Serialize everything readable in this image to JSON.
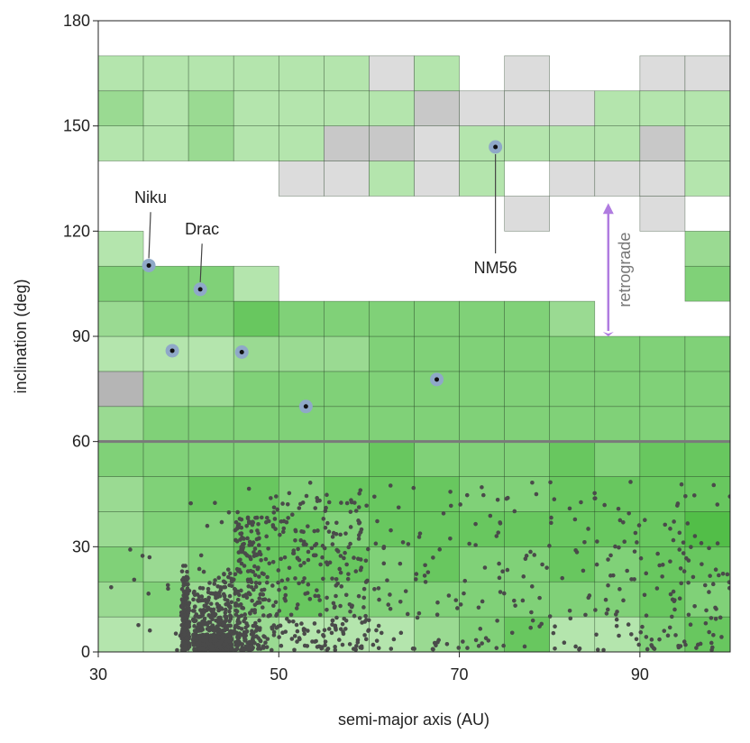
{
  "chart_data": {
    "type": "heatmap",
    "xlabel": "semi-major axis (AU)",
    "ylabel": "inclination (deg)",
    "xlim": [
      30,
      100
    ],
    "ylim": [
      0,
      180
    ],
    "x_ticks": [
      30,
      50,
      70,
      90
    ],
    "y_ticks": [
      0,
      30,
      60,
      90,
      120,
      150,
      180
    ],
    "grid": false,
    "bin_width_au": 5,
    "bin_height_deg": 10,
    "reference_line_deg": 60,
    "colors": {
      "green_1": "#b4e5ad",
      "green_2": "#9ada92",
      "green_3": "#80d178",
      "green_4": "#68c75f",
      "green_5": "#52be48",
      "gray_1": "#dcdcdc",
      "gray_2": "#c8c8c8",
      "gray_3": "#b5b5b5",
      "cell_border": "#1f3a1f",
      "dots": "#4a4a4a",
      "highlight_ring": "#8fa8c8",
      "arrow": "#b07ce0"
    },
    "cells": [
      {
        "a": 30,
        "i": 0,
        "level": "green_1"
      },
      {
        "a": 35,
        "i": 0,
        "level": "green_1"
      },
      {
        "a": 40,
        "i": 0,
        "level": "green_2"
      },
      {
        "a": 45,
        "i": 0,
        "level": "green_2"
      },
      {
        "a": 50,
        "i": 0,
        "level": "green_1"
      },
      {
        "a": 55,
        "i": 0,
        "level": "green_1"
      },
      {
        "a": 60,
        "i": 0,
        "level": "green_1"
      },
      {
        "a": 65,
        "i": 0,
        "level": "green_2"
      },
      {
        "a": 70,
        "i": 0,
        "level": "green_3"
      },
      {
        "a": 75,
        "i": 0,
        "level": "green_4"
      },
      {
        "a": 80,
        "i": 0,
        "level": "green_1"
      },
      {
        "a": 85,
        "i": 0,
        "level": "green_1"
      },
      {
        "a": 90,
        "i": 0,
        "level": "green_3"
      },
      {
        "a": 95,
        "i": 0,
        "level": "green_4"
      },
      {
        "a": 30,
        "i": 10,
        "level": "green_2"
      },
      {
        "a": 35,
        "i": 10,
        "level": "green_3"
      },
      {
        "a": 40,
        "i": 10,
        "level": "green_2"
      },
      {
        "a": 45,
        "i": 10,
        "level": "green_3"
      },
      {
        "a": 50,
        "i": 10,
        "level": "green_4"
      },
      {
        "a": 55,
        "i": 10,
        "level": "green_3"
      },
      {
        "a": 60,
        "i": 10,
        "level": "green_3"
      },
      {
        "a": 65,
        "i": 10,
        "level": "green_3"
      },
      {
        "a": 70,
        "i": 10,
        "level": "green_3"
      },
      {
        "a": 75,
        "i": 10,
        "level": "green_3"
      },
      {
        "a": 80,
        "i": 10,
        "level": "green_3"
      },
      {
        "a": 85,
        "i": 10,
        "level": "green_3"
      },
      {
        "a": 90,
        "i": 10,
        "level": "green_4"
      },
      {
        "a": 95,
        "i": 10,
        "level": "green_3"
      },
      {
        "a": 30,
        "i": 20,
        "level": "green_3"
      },
      {
        "a": 35,
        "i": 20,
        "level": "green_2"
      },
      {
        "a": 40,
        "i": 20,
        "level": "green_3"
      },
      {
        "a": 45,
        "i": 20,
        "level": "green_4"
      },
      {
        "a": 50,
        "i": 20,
        "level": "green_4"
      },
      {
        "a": 55,
        "i": 20,
        "level": "green_4"
      },
      {
        "a": 60,
        "i": 20,
        "level": "green_3"
      },
      {
        "a": 65,
        "i": 20,
        "level": "green_4"
      },
      {
        "a": 70,
        "i": 20,
        "level": "green_3"
      },
      {
        "a": 75,
        "i": 20,
        "level": "green_3"
      },
      {
        "a": 80,
        "i": 20,
        "level": "green_4"
      },
      {
        "a": 85,
        "i": 20,
        "level": "green_3"
      },
      {
        "a": 90,
        "i": 20,
        "level": "green_4"
      },
      {
        "a": 95,
        "i": 20,
        "level": "green_4"
      },
      {
        "a": 30,
        "i": 30,
        "level": "green_2"
      },
      {
        "a": 35,
        "i": 30,
        "level": "green_3"
      },
      {
        "a": 40,
        "i": 30,
        "level": "green_3"
      },
      {
        "a": 45,
        "i": 30,
        "level": "green_4"
      },
      {
        "a": 50,
        "i": 30,
        "level": "green_4"
      },
      {
        "a": 55,
        "i": 30,
        "level": "green_3"
      },
      {
        "a": 60,
        "i": 30,
        "level": "green_4"
      },
      {
        "a": 65,
        "i": 30,
        "level": "green_4"
      },
      {
        "a": 70,
        "i": 30,
        "level": "green_4"
      },
      {
        "a": 75,
        "i": 30,
        "level": "green_4"
      },
      {
        "a": 80,
        "i": 30,
        "level": "green_4"
      },
      {
        "a": 85,
        "i": 30,
        "level": "green_4"
      },
      {
        "a": 90,
        "i": 30,
        "level": "green_4"
      },
      {
        "a": 95,
        "i": 30,
        "level": "green_5"
      },
      {
        "a": 30,
        "i": 40,
        "level": "green_2"
      },
      {
        "a": 35,
        "i": 40,
        "level": "green_3"
      },
      {
        "a": 40,
        "i": 40,
        "level": "green_4"
      },
      {
        "a": 45,
        "i": 40,
        "level": "green_4"
      },
      {
        "a": 50,
        "i": 40,
        "level": "green_3"
      },
      {
        "a": 55,
        "i": 40,
        "level": "green_4"
      },
      {
        "a": 60,
        "i": 40,
        "level": "green_4"
      },
      {
        "a": 65,
        "i": 40,
        "level": "green_4"
      },
      {
        "a": 70,
        "i": 40,
        "level": "green_3"
      },
      {
        "a": 75,
        "i": 40,
        "level": "green_3"
      },
      {
        "a": 80,
        "i": 40,
        "level": "green_4"
      },
      {
        "a": 85,
        "i": 40,
        "level": "green_4"
      },
      {
        "a": 90,
        "i": 40,
        "level": "green_4"
      },
      {
        "a": 95,
        "i": 40,
        "level": "green_4"
      },
      {
        "a": 30,
        "i": 50,
        "level": "green_3"
      },
      {
        "a": 35,
        "i": 50,
        "level": "green_3"
      },
      {
        "a": 40,
        "i": 50,
        "level": "green_3"
      },
      {
        "a": 45,
        "i": 50,
        "level": "green_3"
      },
      {
        "a": 50,
        "i": 50,
        "level": "green_3"
      },
      {
        "a": 55,
        "i": 50,
        "level": "green_3"
      },
      {
        "a": 60,
        "i": 50,
        "level": "green_4"
      },
      {
        "a": 65,
        "i": 50,
        "level": "green_3"
      },
      {
        "a": 70,
        "i": 50,
        "level": "green_3"
      },
      {
        "a": 75,
        "i": 50,
        "level": "green_3"
      },
      {
        "a": 80,
        "i": 50,
        "level": "green_4"
      },
      {
        "a": 85,
        "i": 50,
        "level": "green_3"
      },
      {
        "a": 90,
        "i": 50,
        "level": "green_4"
      },
      {
        "a": 95,
        "i": 50,
        "level": "green_4"
      },
      {
        "a": 30,
        "i": 60,
        "level": "green_2"
      },
      {
        "a": 35,
        "i": 60,
        "level": "green_3"
      },
      {
        "a": 40,
        "i": 60,
        "level": "green_3"
      },
      {
        "a": 45,
        "i": 60,
        "level": "green_3"
      },
      {
        "a": 50,
        "i": 60,
        "level": "green_3"
      },
      {
        "a": 55,
        "i": 60,
        "level": "green_3"
      },
      {
        "a": 60,
        "i": 60,
        "level": "green_3"
      },
      {
        "a": 65,
        "i": 60,
        "level": "green_3"
      },
      {
        "a": 70,
        "i": 60,
        "level": "green_3"
      },
      {
        "a": 75,
        "i": 60,
        "level": "green_3"
      },
      {
        "a": 80,
        "i": 60,
        "level": "green_3"
      },
      {
        "a": 85,
        "i": 60,
        "level": "green_3"
      },
      {
        "a": 90,
        "i": 60,
        "level": "green_3"
      },
      {
        "a": 95,
        "i": 60,
        "level": "green_3"
      },
      {
        "a": 30,
        "i": 70,
        "level": "gray_3"
      },
      {
        "a": 35,
        "i": 70,
        "level": "green_2"
      },
      {
        "a": 40,
        "i": 70,
        "level": "green_2"
      },
      {
        "a": 45,
        "i": 70,
        "level": "green_3"
      },
      {
        "a": 50,
        "i": 70,
        "level": "green_3"
      },
      {
        "a": 55,
        "i": 70,
        "level": "green_3"
      },
      {
        "a": 60,
        "i": 70,
        "level": "green_3"
      },
      {
        "a": 65,
        "i": 70,
        "level": "green_3"
      },
      {
        "a": 70,
        "i": 70,
        "level": "green_3"
      },
      {
        "a": 75,
        "i": 70,
        "level": "green_3"
      },
      {
        "a": 80,
        "i": 70,
        "level": "green_3"
      },
      {
        "a": 85,
        "i": 70,
        "level": "green_3"
      },
      {
        "a": 90,
        "i": 70,
        "level": "green_3"
      },
      {
        "a": 95,
        "i": 70,
        "level": "green_3"
      },
      {
        "a": 30,
        "i": 80,
        "level": "green_1"
      },
      {
        "a": 35,
        "i": 80,
        "level": "green_1"
      },
      {
        "a": 40,
        "i": 80,
        "level": "green_1"
      },
      {
        "a": 45,
        "i": 80,
        "level": "green_2"
      },
      {
        "a": 50,
        "i": 80,
        "level": "green_2"
      },
      {
        "a": 55,
        "i": 80,
        "level": "green_2"
      },
      {
        "a": 60,
        "i": 80,
        "level": "green_3"
      },
      {
        "a": 65,
        "i": 80,
        "level": "green_3"
      },
      {
        "a": 70,
        "i": 80,
        "level": "green_3"
      },
      {
        "a": 75,
        "i": 80,
        "level": "green_3"
      },
      {
        "a": 80,
        "i": 80,
        "level": "green_3"
      },
      {
        "a": 85,
        "i": 80,
        "level": "green_3"
      },
      {
        "a": 90,
        "i": 80,
        "level": "green_3"
      },
      {
        "a": 95,
        "i": 80,
        "level": "green_3"
      },
      {
        "a": 30,
        "i": 90,
        "level": "green_2"
      },
      {
        "a": 35,
        "i": 90,
        "level": "green_3"
      },
      {
        "a": 40,
        "i": 90,
        "level": "green_3"
      },
      {
        "a": 45,
        "i": 90,
        "level": "green_4"
      },
      {
        "a": 50,
        "i": 90,
        "level": "green_3"
      },
      {
        "a": 55,
        "i": 90,
        "level": "green_3"
      },
      {
        "a": 60,
        "i": 90,
        "level": "green_3"
      },
      {
        "a": 65,
        "i": 90,
        "level": "green_3"
      },
      {
        "a": 70,
        "i": 90,
        "level": "green_3"
      },
      {
        "a": 75,
        "i": 90,
        "level": "green_3"
      },
      {
        "a": 80,
        "i": 90,
        "level": "green_2"
      },
      {
        "a": 30,
        "i": 100,
        "level": "green_3"
      },
      {
        "a": 35,
        "i": 100,
        "level": "green_3"
      },
      {
        "a": 40,
        "i": 100,
        "level": "green_3"
      },
      {
        "a": 45,
        "i": 100,
        "level": "green_1"
      },
      {
        "a": 95,
        "i": 100,
        "level": "green_3"
      },
      {
        "a": 30,
        "i": 110,
        "level": "green_1"
      },
      {
        "a": 95,
        "i": 110,
        "level": "green_2"
      },
      {
        "a": 75,
        "i": 120,
        "level": "gray_1"
      },
      {
        "a": 90,
        "i": 120,
        "level": "gray_1"
      },
      {
        "a": 50,
        "i": 130,
        "level": "gray_1"
      },
      {
        "a": 55,
        "i": 130,
        "level": "gray_1"
      },
      {
        "a": 60,
        "i": 130,
        "level": "green_1"
      },
      {
        "a": 65,
        "i": 130,
        "level": "gray_1"
      },
      {
        "a": 70,
        "i": 130,
        "level": "green_1"
      },
      {
        "a": 80,
        "i": 130,
        "level": "gray_1"
      },
      {
        "a": 85,
        "i": 130,
        "level": "gray_1"
      },
      {
        "a": 90,
        "i": 130,
        "level": "gray_1"
      },
      {
        "a": 95,
        "i": 130,
        "level": "green_1"
      },
      {
        "a": 30,
        "i": 140,
        "level": "green_1"
      },
      {
        "a": 35,
        "i": 140,
        "level": "green_1"
      },
      {
        "a": 40,
        "i": 140,
        "level": "green_2"
      },
      {
        "a": 45,
        "i": 140,
        "level": "green_1"
      },
      {
        "a": 50,
        "i": 140,
        "level": "green_1"
      },
      {
        "a": 55,
        "i": 140,
        "level": "gray_2"
      },
      {
        "a": 60,
        "i": 140,
        "level": "gray_2"
      },
      {
        "a": 65,
        "i": 140,
        "level": "gray_1"
      },
      {
        "a": 70,
        "i": 140,
        "level": "green_1"
      },
      {
        "a": 75,
        "i": 140,
        "level": "green_1"
      },
      {
        "a": 80,
        "i": 140,
        "level": "green_1"
      },
      {
        "a": 85,
        "i": 140,
        "level": "green_1"
      },
      {
        "a": 90,
        "i": 140,
        "level": "gray_2"
      },
      {
        "a": 95,
        "i": 140,
        "level": "green_1"
      },
      {
        "a": 30,
        "i": 150,
        "level": "green_2"
      },
      {
        "a": 35,
        "i": 150,
        "level": "green_1"
      },
      {
        "a": 40,
        "i": 150,
        "level": "green_2"
      },
      {
        "a": 45,
        "i": 150,
        "level": "green_1"
      },
      {
        "a": 50,
        "i": 150,
        "level": "green_1"
      },
      {
        "a": 55,
        "i": 150,
        "level": "green_1"
      },
      {
        "a": 60,
        "i": 150,
        "level": "green_1"
      },
      {
        "a": 65,
        "i": 150,
        "level": "gray_2"
      },
      {
        "a": 70,
        "i": 150,
        "level": "gray_1"
      },
      {
        "a": 75,
        "i": 150,
        "level": "gray_1"
      },
      {
        "a": 80,
        "i": 150,
        "level": "gray_1"
      },
      {
        "a": 85,
        "i": 150,
        "level": "green_1"
      },
      {
        "a": 90,
        "i": 150,
        "level": "green_1"
      },
      {
        "a": 95,
        "i": 150,
        "level": "green_1"
      },
      {
        "a": 30,
        "i": 160,
        "level": "green_1"
      },
      {
        "a": 35,
        "i": 160,
        "level": "green_1"
      },
      {
        "a": 40,
        "i": 160,
        "level": "green_1"
      },
      {
        "a": 45,
        "i": 160,
        "level": "green_1"
      },
      {
        "a": 50,
        "i": 160,
        "level": "green_1"
      },
      {
        "a": 55,
        "i": 160,
        "level": "green_1"
      },
      {
        "a": 60,
        "i": 160,
        "level": "gray_1"
      },
      {
        "a": 65,
        "i": 160,
        "level": "green_1"
      },
      {
        "a": 75,
        "i": 160,
        "level": "gray_1"
      },
      {
        "a": 90,
        "i": 160,
        "level": "gray_1"
      },
      {
        "a": 95,
        "i": 160,
        "level": "gray_1"
      }
    ],
    "highlighted_objects": [
      {
        "label": "Niku",
        "a": 35.6,
        "i": 110.2,
        "label_a": 35.8,
        "label_i": 128
      },
      {
        "label": "Drac",
        "a": 41.3,
        "i": 103.4,
        "label_a": 41.5,
        "label_i": 119
      },
      {
        "label": "",
        "a": 38.2,
        "i": 85.9
      },
      {
        "label": "",
        "a": 45.9,
        "i": 85.5
      },
      {
        "label": "",
        "a": 53.0,
        "i": 70.0
      },
      {
        "label": "",
        "a": 67.5,
        "i": 77.7
      },
      {
        "label": "NM56",
        "a": 74.0,
        "i": 144.0,
        "label_a": 74.0,
        "label_i": 108
      }
    ],
    "annotation": {
      "text": "retrograde",
      "a": 86.5,
      "i_from": 90,
      "i_to": 128
    },
    "scatter_counts": {
      "hot_38_45": 600,
      "cluster_45_48": 220,
      "plutino_39_40": 180,
      "main_50_60": 250,
      "scattered_60_100": 380
    }
  }
}
